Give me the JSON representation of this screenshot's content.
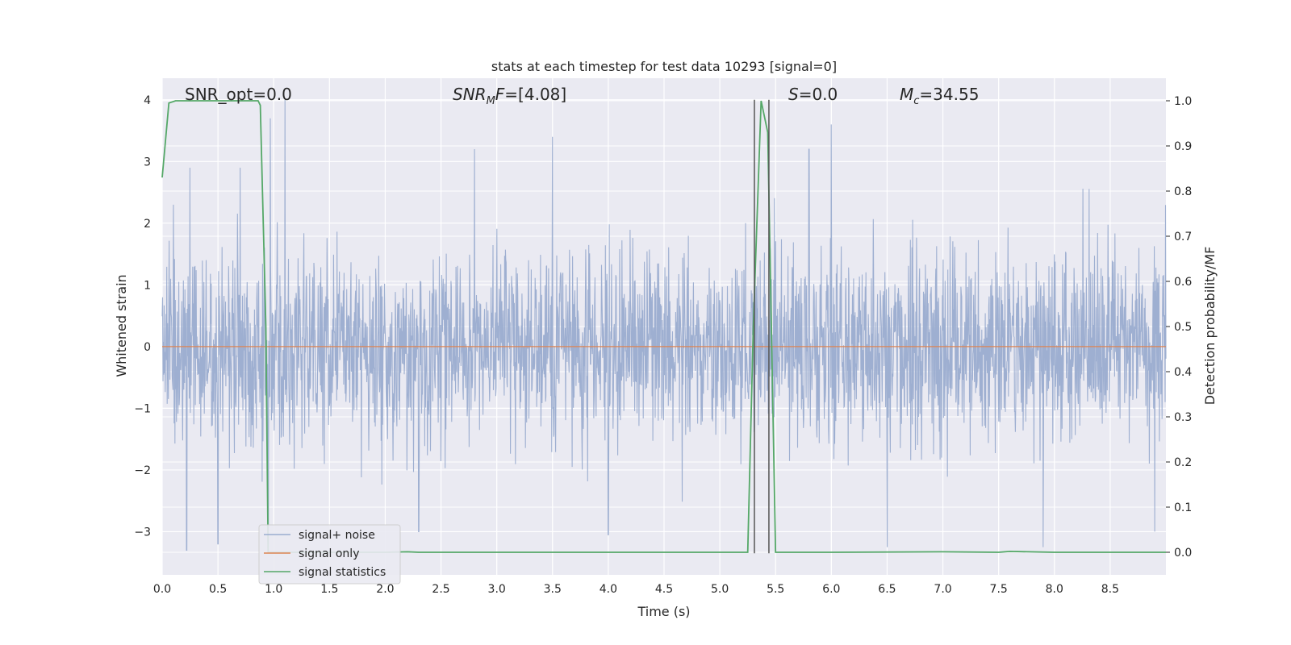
{
  "chart_data": {
    "type": "line",
    "title": "stats at each timestep for test data 10293 [signal=0]",
    "xlabel": "Time (s)",
    "ylabel_left": "Whitened strain",
    "ylabel_right": "Detection probability/MF",
    "xlim": [
      0.0,
      9.0
    ],
    "ylim_left": [
      -3.7,
      4.35
    ],
    "ylim_right": [
      -0.05,
      1.05
    ],
    "x_ticks": [
      "0.0",
      "0.5",
      "1.0",
      "1.5",
      "2.0",
      "2.5",
      "3.0",
      "3.5",
      "4.0",
      "4.5",
      "5.0",
      "5.5",
      "6.0",
      "6.5",
      "7.0",
      "7.5",
      "8.0",
      "8.5"
    ],
    "y_left_ticks": [
      "−3",
      "−2",
      "−1",
      "0",
      "1",
      "2",
      "3",
      "4"
    ],
    "y_right_ticks": [
      "0.0",
      "0.1",
      "0.2",
      "0.3",
      "0.4",
      "0.5",
      "0.6",
      "0.7",
      "0.8",
      "0.9",
      "1.0"
    ],
    "grid": true,
    "legend_position": "lower-left",
    "annotations": {
      "snr_opt": "SNR_opt=0.0",
      "snr_mf": "=[4.08]",
      "snr_mf_base": "SNR",
      "snr_mf_sub": "M",
      "snr_mf_mid": "F",
      "s_label": "S",
      "s_value": "=0.0",
      "mc_base": "M",
      "mc_sub": "c",
      "mc_value": "=34.55"
    },
    "series": [
      {
        "name": "signal+ noise",
        "axis": "left",
        "color": "#9aaccf",
        "description_values": "noise envelope ~ ±1.5 typical, peaks to ±3.4",
        "envelope_peaks_top": [
          [
            0.1,
            2.3
          ],
          [
            0.25,
            2.9
          ],
          [
            0.7,
            2.9
          ],
          [
            0.97,
            3.7
          ],
          [
            1.1,
            4.0
          ],
          [
            2.8,
            3.2
          ],
          [
            3.5,
            3.4
          ],
          [
            5.8,
            3.2
          ],
          [
            6.0,
            3.6
          ],
          [
            7.9,
            3.2
          ]
        ],
        "envelope_peaks_bottom": [
          [
            0.22,
            -3.3
          ],
          [
            0.5,
            -3.2
          ],
          [
            0.95,
            -3.2
          ],
          [
            2.3,
            -3.0
          ],
          [
            4.0,
            -3.05
          ],
          [
            6.5,
            -3.25
          ],
          [
            7.9,
            -3.25
          ],
          [
            8.9,
            -3.0
          ]
        ]
      },
      {
        "name": "signal only",
        "axis": "left",
        "color": "#dd8452",
        "x": [
          0.0,
          9.0
        ],
        "y": [
          0.0,
          0.0
        ]
      },
      {
        "name": "signal statistics",
        "axis": "right",
        "color": "#55a868",
        "x": [
          0.0,
          0.06,
          0.12,
          0.3,
          0.5,
          0.7,
          0.86,
          0.88,
          0.93,
          0.95,
          1.0,
          1.5,
          2.0,
          2.2,
          2.3,
          3.0,
          4.0,
          5.0,
          5.25,
          5.3,
          5.37,
          5.43,
          5.5,
          6.0,
          7.0,
          7.5,
          7.6,
          8.0,
          9.0
        ],
        "y": [
          0.83,
          0.995,
          1.0,
          1.0,
          1.0,
          1.0,
          1.0,
          0.99,
          0.5,
          0.0,
          0.0,
          0.0,
          0.0,
          0.001,
          0.0,
          0.0,
          0.0,
          0.0,
          0.0,
          0.5,
          1.0,
          0.93,
          0.0,
          0.0,
          0.001,
          0.0,
          0.002,
          0.0,
          0.0
        ]
      }
    ],
    "vertical_lines": {
      "color": "#555555",
      "x": [
        5.31,
        5.44
      ],
      "y_range_left": [
        -3.35,
        4.0
      ]
    }
  }
}
